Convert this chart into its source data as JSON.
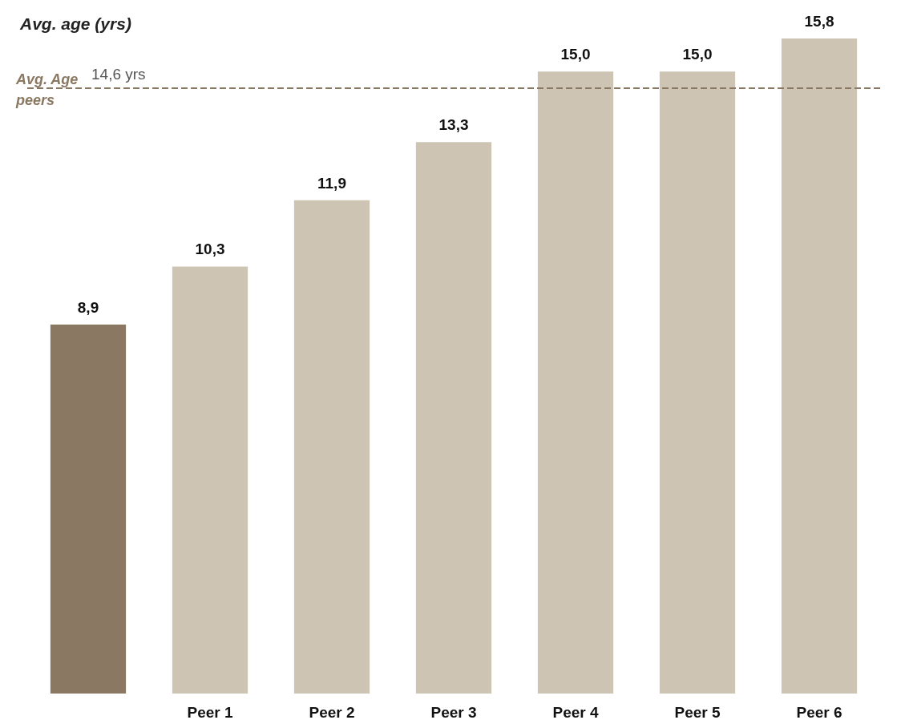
{
  "chart_data": {
    "type": "bar",
    "title": "Avg. age (yrs)",
    "categories": [
      null,
      "Peer 1",
      "Peer 2",
      "Peer 3",
      "Peer 4",
      "Peer 5",
      "Peer 6"
    ],
    "values": [
      8.9,
      10.3,
      11.9,
      13.3,
      15.0,
      15.0,
      15.8
    ],
    "value_labels": [
      "8,9",
      "10,3",
      "11,9",
      "13,3",
      "15,0",
      "15,0",
      "15,8"
    ],
    "colors": [
      "#8a7862",
      "#cec4b3",
      "#cec4b3",
      "#cec4b3",
      "#cec4b3",
      "#cec4b3",
      "#cec4b3"
    ],
    "ref_lines": [
      {
        "axis": "y",
        "value": 14.6,
        "label": "14,6 yrs",
        "color": "#8a7862",
        "line_style": "dashed"
      }
    ],
    "annotations": [
      "Avg. Age\npeers"
    ]
  }
}
